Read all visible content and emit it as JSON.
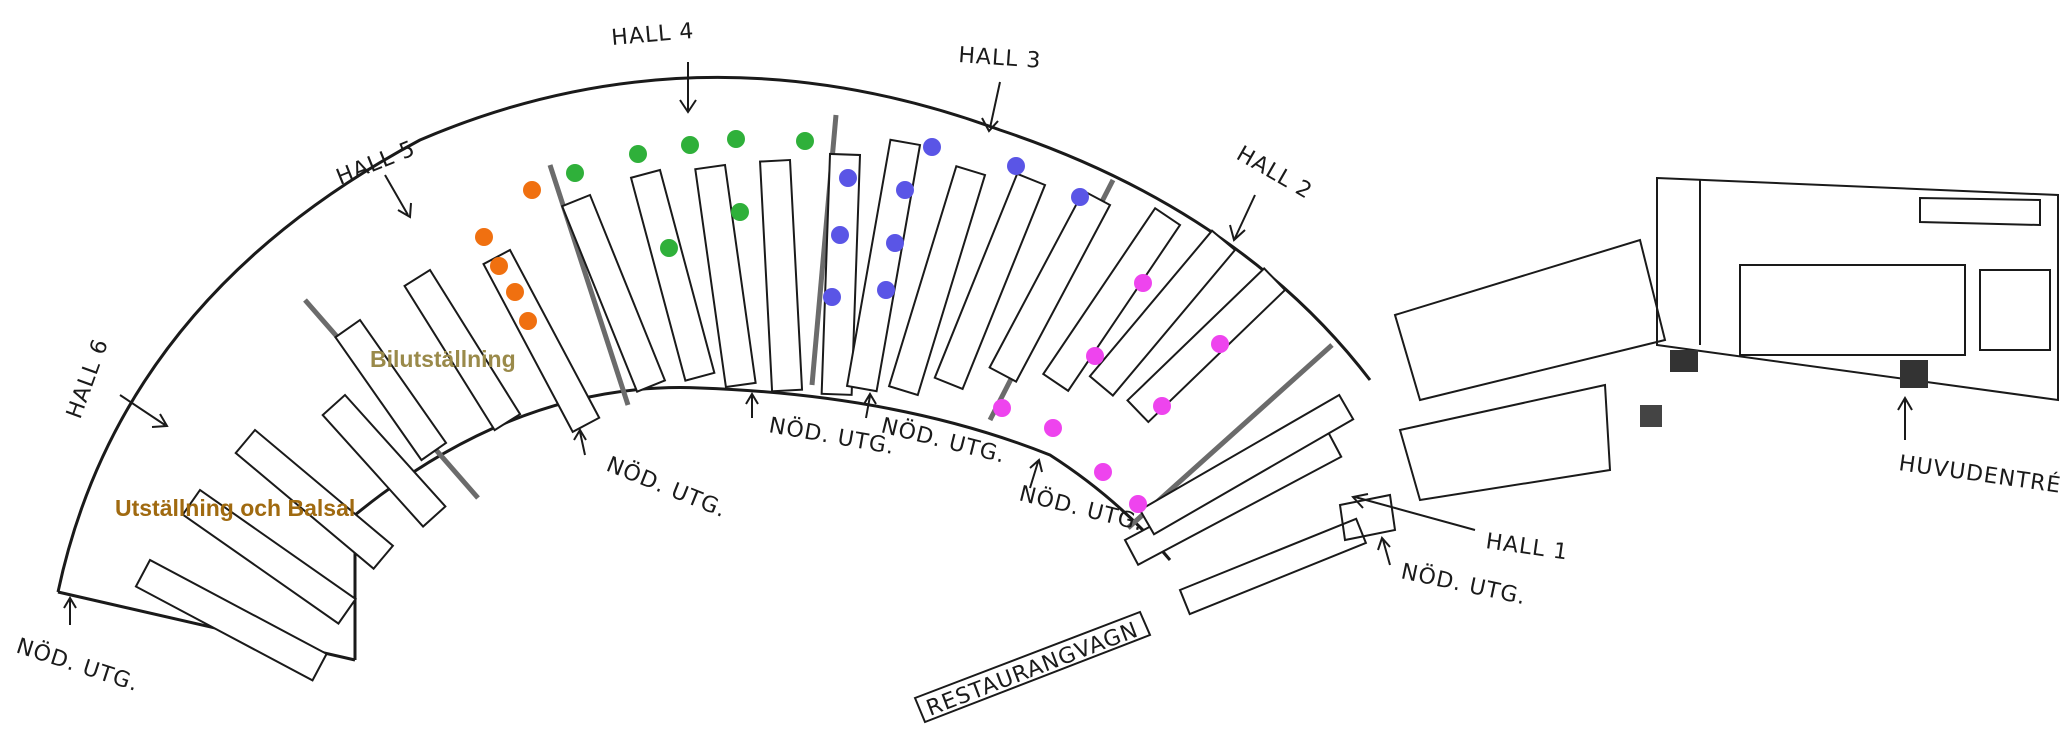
{
  "halls": {
    "hall_1": "HALL 1",
    "hall_2": "HALL 2",
    "hall_3": "HALL 3",
    "hall_4": "HALL 4",
    "hall_5": "HALL 5",
    "hall_6": "HALL 6"
  },
  "emergency_exit_label": "NÖD. UTG.",
  "main_entrance_label": "HUVUDENTRÉ",
  "dining_car_label": "RESTAURANGVAGN",
  "zones": {
    "car_exhibition": "Bilutställning",
    "exhibition_and_ballroom": "Utställning och Balsal"
  },
  "colors": {
    "car_exhibition_text": "#9a8a4a",
    "ballroom_text": "#a06a10",
    "dot_orange": "#f07010",
    "dot_green": "#2fb03a",
    "dot_blue": "#5a55e6",
    "dot_magenta": "#ee44ee",
    "divider": "#6b6b6b"
  },
  "legend_note": ""
}
